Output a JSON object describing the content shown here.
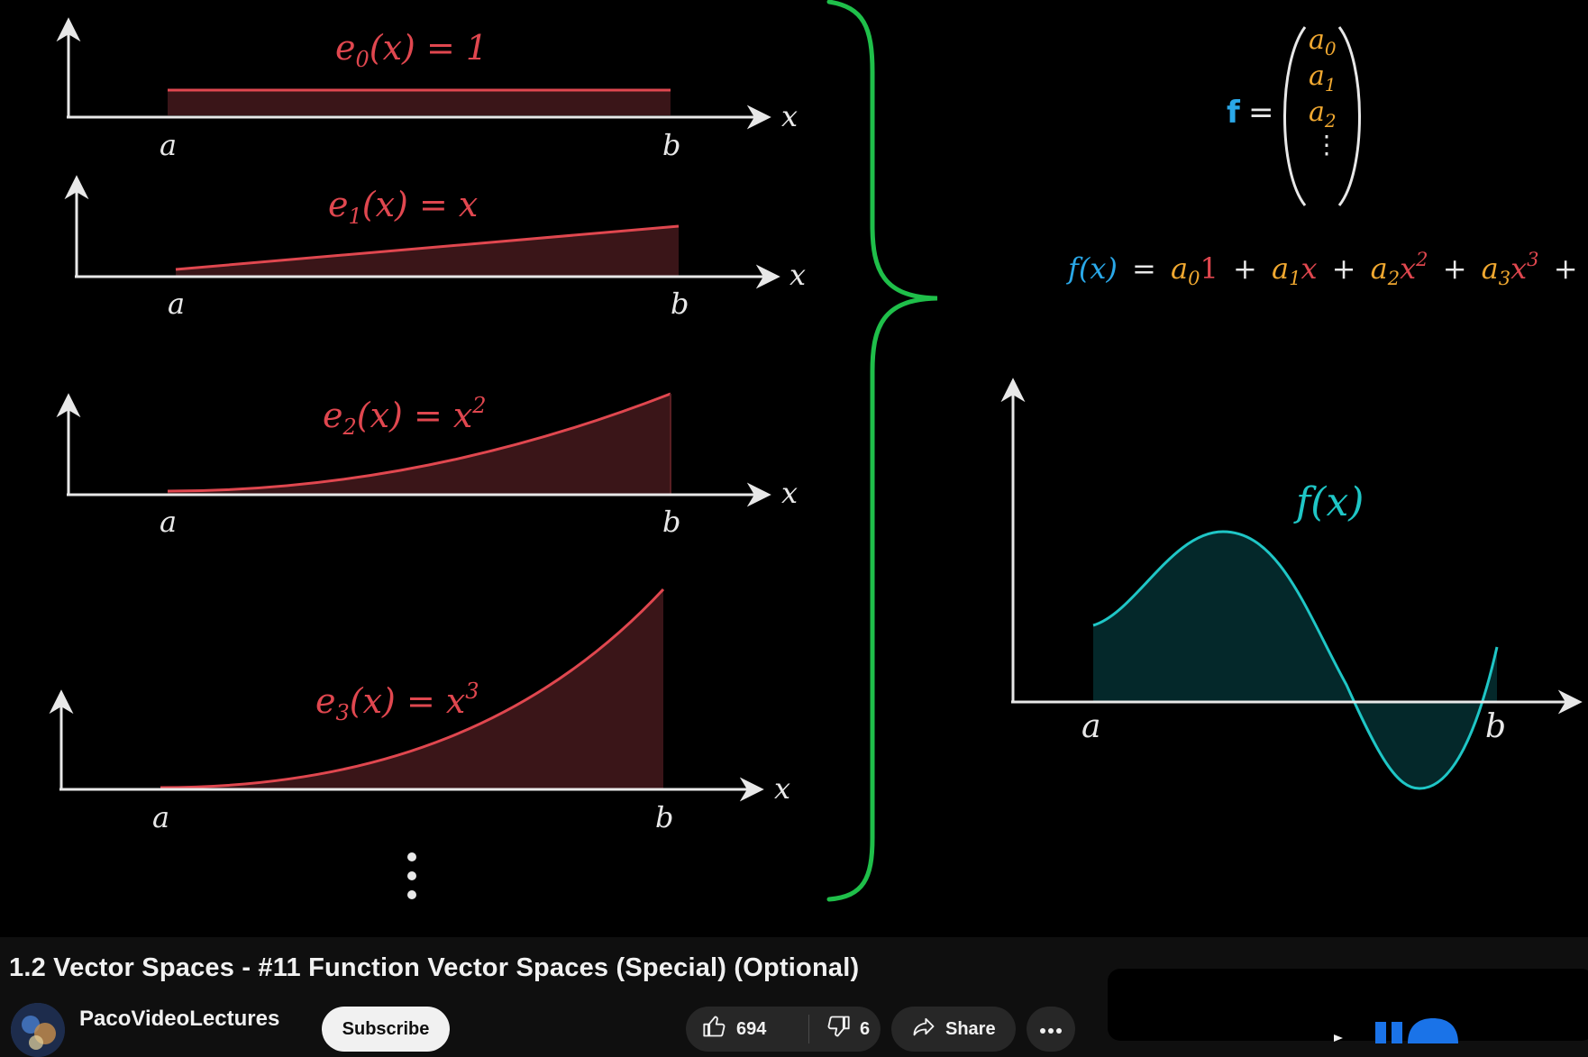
{
  "video": {
    "basis": [
      {
        "label_e": "e",
        "sub": "0",
        "rhs": "(x) = 1"
      },
      {
        "label_e": "e",
        "sub": "1",
        "rhs": "(x) = x"
      },
      {
        "label_e": "e",
        "sub": "2",
        "rhs": "(x) = x",
        "sup": "2"
      },
      {
        "label_e": "e",
        "sub": "3",
        "rhs": "(x) = x",
        "sup": "3"
      }
    ],
    "axis_a": "a",
    "axis_b": "b",
    "axis_x": "x",
    "vdots": "⋮",
    "vector_lhs": "f",
    "vector_eq": "=",
    "vector_entries": [
      {
        "base": "a",
        "sub": "0"
      },
      {
        "base": "a",
        "sub": "1"
      },
      {
        "base": "a",
        "sub": "2"
      }
    ],
    "expansion": {
      "lhs": "f(x)",
      "eq": "=",
      "terms": [
        {
          "coef": "a",
          "sub": "0",
          "basis": "1"
        },
        {
          "coef": "a",
          "sub": "1",
          "basis": "x"
        },
        {
          "coef": "a",
          "sub": "2",
          "basis": "x",
          "sup": "2"
        },
        {
          "coef": "a",
          "sub": "3",
          "basis": "x",
          "sup": "3"
        }
      ],
      "plus": "+",
      "tail": "+ ⋯"
    },
    "fx_label": "f(x)",
    "colors": {
      "basis": "#e0474f",
      "basis_fill": "#3a1518",
      "axis": "#e8e8e8",
      "brace": "#1fbf4a",
      "vector_f": "#2aa8e8",
      "coef": "#f0a830",
      "fx_curve": "#1fc6c6",
      "fx_fill": "#04282a"
    }
  },
  "title": "1.2 Vector Spaces - #11 Function Vector Spaces (Special) (Optional)",
  "channel": {
    "name": "PacoVideoLectures",
    "avatar_icon": "channel-avatar"
  },
  "actions": {
    "subscribe_label": "Subscribe",
    "like_count": "694",
    "dislike_count": "6",
    "share_label": "Share",
    "more_icon": "more-horizontal-icon"
  }
}
